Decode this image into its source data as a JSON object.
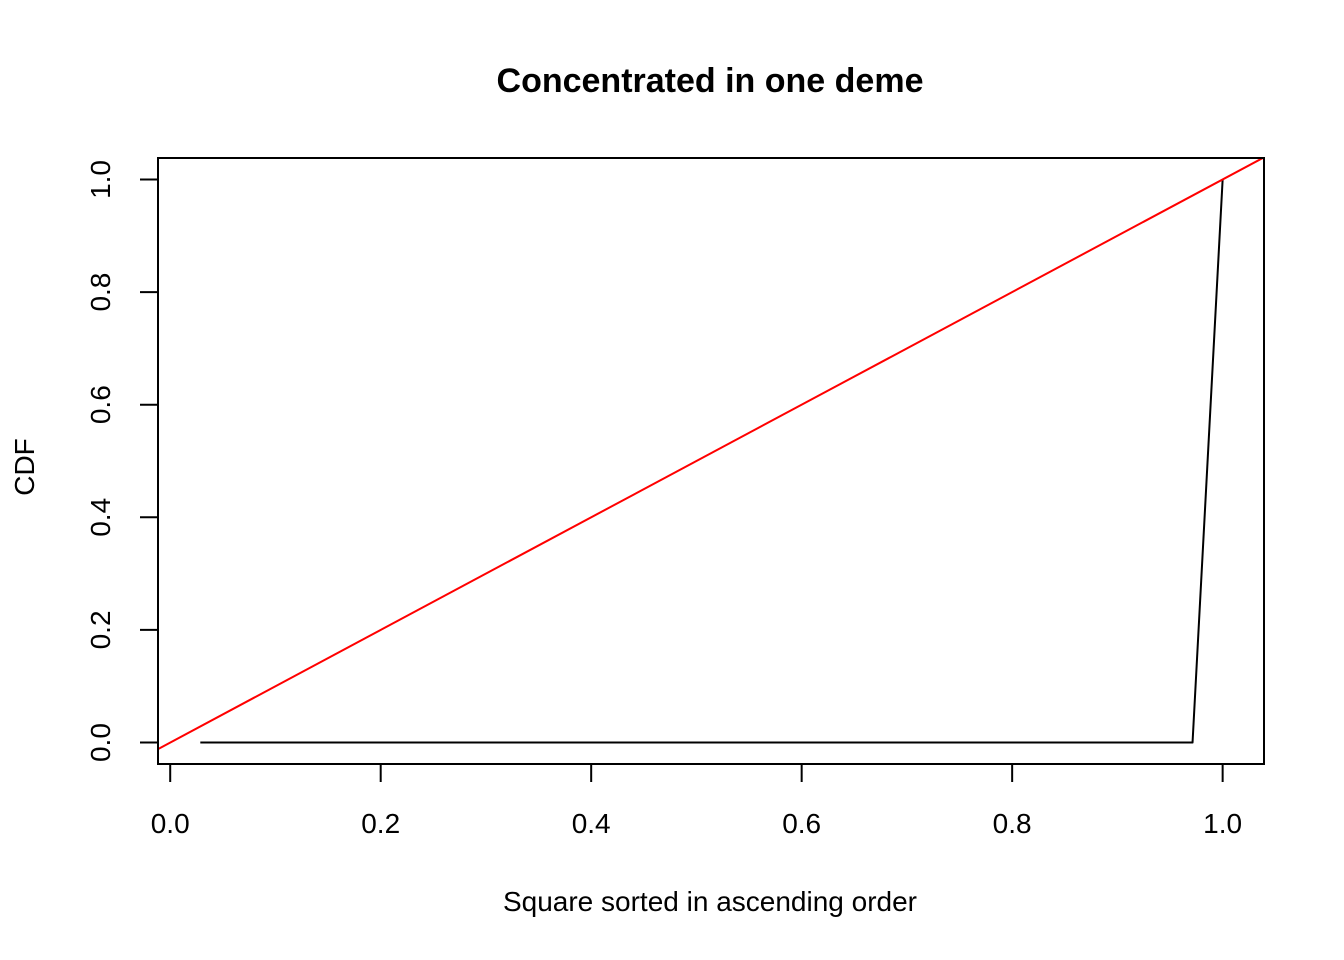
{
  "chart_data": {
    "type": "line",
    "title": "Concentrated in one deme",
    "xlabel": "Square sorted in ascending order",
    "ylabel": "CDF",
    "xlim": [
      -0.0116,
      1.0393
    ],
    "ylim": [
      -0.0381,
      1.0381
    ],
    "grid": false,
    "legend": "none",
    "x_ticks": [
      0.0,
      0.2,
      0.4,
      0.6,
      0.8,
      1.0
    ],
    "x_tick_labels": [
      "0.0",
      "0.2",
      "0.4",
      "0.6",
      "0.8",
      "1.0"
    ],
    "y_ticks": [
      0.0,
      0.2,
      0.4,
      0.6,
      0.8,
      1.0
    ],
    "y_tick_labels": [
      "0.0",
      "0.2",
      "0.4",
      "0.6",
      "0.8",
      "1.0"
    ],
    "series": [
      {
        "color": "#000000",
        "x": [
          0.0286,
          0.0571,
          0.0857,
          0.1143,
          0.1429,
          0.1714,
          0.2,
          0.2286,
          0.2571,
          0.2857,
          0.3143,
          0.3429,
          0.3714,
          0.4,
          0.4286,
          0.4571,
          0.4857,
          0.5143,
          0.5429,
          0.5714,
          0.6,
          0.6286,
          0.6571,
          0.6857,
          0.7143,
          0.7429,
          0.7714,
          0.8,
          0.8286,
          0.8571,
          0.8857,
          0.9143,
          0.9429,
          0.9714,
          1.0
        ],
        "y": [
          0,
          0,
          0,
          0,
          0,
          0,
          0,
          0,
          0,
          0,
          0,
          0,
          0,
          0,
          0,
          0,
          0,
          0,
          0,
          0,
          0,
          0,
          0,
          0,
          0,
          0,
          0,
          0,
          0,
          0,
          0,
          0,
          0,
          0,
          1
        ]
      },
      {
        "color": "#ff0000",
        "line_type": "abline",
        "intercept": 0,
        "slope": 1
      }
    ]
  }
}
